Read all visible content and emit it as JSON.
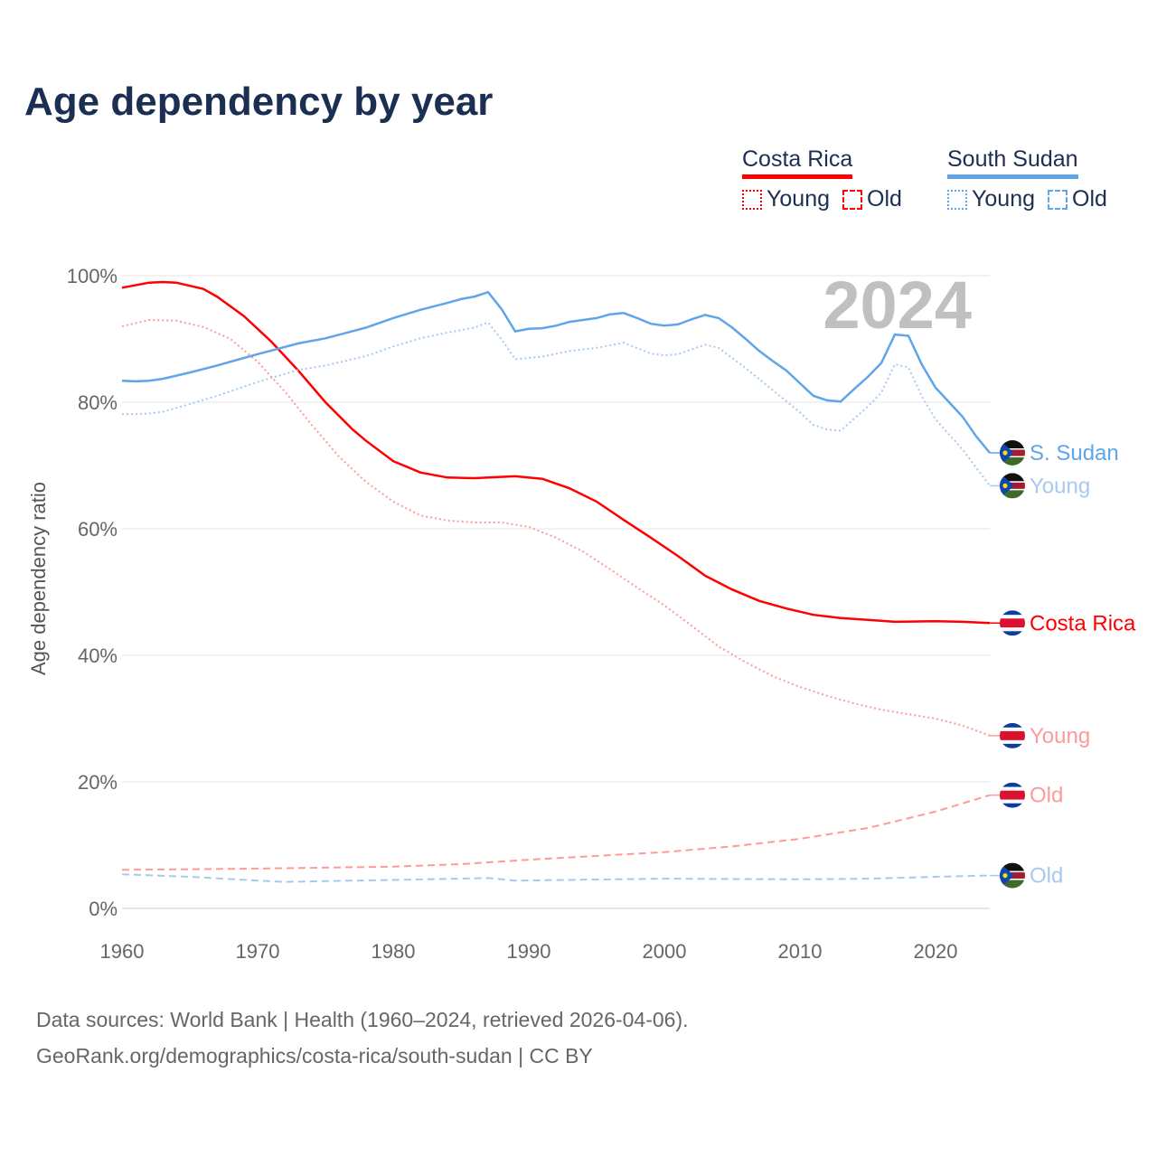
{
  "title": "Age dependency by year",
  "legend": [
    {
      "name": "Costa Rica",
      "color": "#ff0000",
      "light": "#ff0000",
      "young": "Young",
      "old": "Old"
    },
    {
      "name": "South Sudan",
      "color": "#5ea5ea",
      "light": "#5ea5ea",
      "young": "Young",
      "old": "Old"
    }
  ],
  "year_label": "2024",
  "footer": {
    "line1": "Data sources: World Bank | Health (1960–2024, retrieved 2026-04-06).",
    "line2": "GeoRank.org/demographics/costa-rica/south-sudan | CC BY"
  },
  "chart_data": {
    "type": "line",
    "title": "Age dependency by year",
    "xlabel": "",
    "ylabel": "Age dependency ratio",
    "xlim": [
      1960,
      2024
    ],
    "ylim": [
      0,
      100
    ],
    "xticks": [
      1960,
      1970,
      1980,
      1990,
      2000,
      2010,
      2020
    ],
    "yticks": [
      0,
      20,
      40,
      60,
      80,
      100
    ],
    "ytick_labels": [
      "0%",
      "20%",
      "40%",
      "60%",
      "80%",
      "100%"
    ],
    "xtick_labels": [
      "1960",
      "1970",
      "1980",
      "1990",
      "2000",
      "2010",
      "2020"
    ],
    "grid": true,
    "series": [
      {
        "name": "Costa Rica",
        "label": "Costa Rica",
        "flag": "costa-rica",
        "color": "#ff0000",
        "style": "solid",
        "x": [
          1960,
          1962,
          1963,
          1964,
          1966,
          1967,
          1969,
          1971,
          1973,
          1975,
          1977,
          1978,
          1980,
          1982,
          1984,
          1986,
          1989,
          1991,
          1993,
          1995,
          1997,
          1999,
          2001,
          2003,
          2005,
          2007,
          2009,
          2011,
          2013,
          2015,
          2017,
          2020,
          2022,
          2024
        ],
        "y": [
          98.1,
          98.9,
          99,
          98.9,
          97.9,
          96.7,
          93.6,
          89.6,
          85,
          80,
          75.7,
          73.9,
          70.7,
          68.9,
          68.1,
          68,
          68.3,
          67.9,
          66.4,
          64.3,
          61.4,
          58.6,
          55.7,
          52.6,
          50.4,
          48.6,
          47.4,
          46.4,
          45.9,
          45.6,
          45.3,
          45.4,
          45.3,
          45.1
        ]
      },
      {
        "name": "Costa Rica Young",
        "label": "Young",
        "flag": "costa-rica",
        "color": "#ff9a9a",
        "style": "dotted",
        "x": [
          1960,
          1962,
          1964,
          1966,
          1968,
          1970,
          1972,
          1974,
          1976,
          1978,
          1980,
          1982,
          1984,
          1986,
          1988,
          1990,
          1992,
          1994,
          1996,
          1998,
          2000,
          2002,
          2004,
          2006,
          2008,
          2010,
          2012,
          2014,
          2016,
          2018,
          2020,
          2022,
          2024
        ],
        "y": [
          92,
          93,
          92.9,
          91.9,
          90,
          86.4,
          81.7,
          76.4,
          71.4,
          67.4,
          64.3,
          62.1,
          61.3,
          61,
          61,
          60.3,
          58.6,
          56.4,
          53.6,
          50.7,
          47.9,
          44.7,
          41.4,
          38.9,
          36.7,
          35,
          33.6,
          32.4,
          31.4,
          30.7,
          30,
          28.9,
          27.3
        ]
      },
      {
        "name": "Costa Rica Old",
        "label": "Old",
        "flag": "costa-rica",
        "color": "#ff9a9a",
        "style": "dashed",
        "x": [
          1960,
          1970,
          1980,
          1985,
          1990,
          1995,
          2000,
          2005,
          2010,
          2015,
          2020,
          2024
        ],
        "y": [
          6.1,
          6.3,
          6.6,
          7,
          7.7,
          8.3,
          8.9,
          9.8,
          11,
          12.7,
          15.3,
          17.9
        ]
      },
      {
        "name": "South Sudan",
        "label": "S. Sudan",
        "flag": "south-sudan",
        "color": "#5ea5ea",
        "style": "solid",
        "x": [
          1960,
          1961,
          1962,
          1963,
          1965,
          1967,
          1970,
          1973,
          1975,
          1978,
          1980,
          1982,
          1984,
          1985,
          1986,
          1987,
          1988,
          1989,
          1990,
          1991,
          1992,
          1993,
          1995,
          1996,
          1997,
          1998,
          1999,
          2000,
          2001,
          2002,
          2003,
          2004,
          2005,
          2006,
          2007,
          2008,
          2009,
          2010,
          2011,
          2012,
          2013,
          2014,
          2015,
          2016,
          2017,
          2018,
          2019,
          2020,
          2021,
          2022,
          2023,
          2024
        ],
        "y": [
          83.4,
          83.3,
          83.4,
          83.7,
          84.7,
          85.8,
          87.6,
          89.3,
          90.1,
          91.8,
          93.3,
          94.6,
          95.7,
          96.3,
          96.7,
          97.4,
          94.7,
          91.2,
          91.6,
          91.7,
          92.1,
          92.7,
          93.3,
          93.9,
          94.1,
          93.3,
          92.4,
          92.1,
          92.3,
          93.1,
          93.8,
          93.3,
          91.8,
          90,
          88.1,
          86.5,
          85,
          83,
          81,
          80.3,
          80.1,
          82.1,
          84,
          86.2,
          90.7,
          90.5,
          85.9,
          82.3,
          80,
          77.7,
          74.6,
          72
        ]
      },
      {
        "name": "South Sudan Young",
        "label": "Young",
        "flag": "south-sudan",
        "color": "#a7c9ef",
        "style": "dotted",
        "x": [
          1960,
          1962,
          1963,
          1965,
          1967,
          1970,
          1973,
          1975,
          1978,
          1980,
          1982,
          1984,
          1986,
          1987,
          1988,
          1989,
          1991,
          1993,
          1995,
          1997,
          1999,
          2000,
          2001,
          2003,
          2004,
          2006,
          2008,
          2010,
          2011,
          2012,
          2013,
          2014,
          2015,
          2016,
          2017,
          2018,
          2019,
          2020,
          2022,
          2024
        ],
        "y": [
          78.1,
          78.2,
          78.5,
          79.7,
          81,
          83.2,
          85.1,
          85.8,
          87.3,
          88.8,
          90.1,
          91,
          91.8,
          92.6,
          89.9,
          86.8,
          87.2,
          88.1,
          88.6,
          89.4,
          87.7,
          87.4,
          87.6,
          89.1,
          88.6,
          85.4,
          81.9,
          78.4,
          76.4,
          75.7,
          75.5,
          77.4,
          79.3,
          81.5,
          86,
          85.5,
          80.9,
          77.3,
          72.5,
          66.8
        ]
      },
      {
        "name": "South Sudan Old",
        "label": "Old",
        "flag": "south-sudan",
        "color": "#a7c9ef",
        "style": "dashed",
        "x": [
          1960,
          1965,
          1970,
          1972,
          1980,
          1987,
          1989,
          2000,
          2010,
          2015,
          2020,
          2024
        ],
        "y": [
          5.4,
          5,
          4.4,
          4.2,
          4.5,
          4.8,
          4.4,
          4.7,
          4.6,
          4.7,
          5,
          5.2
        ]
      }
    ]
  }
}
